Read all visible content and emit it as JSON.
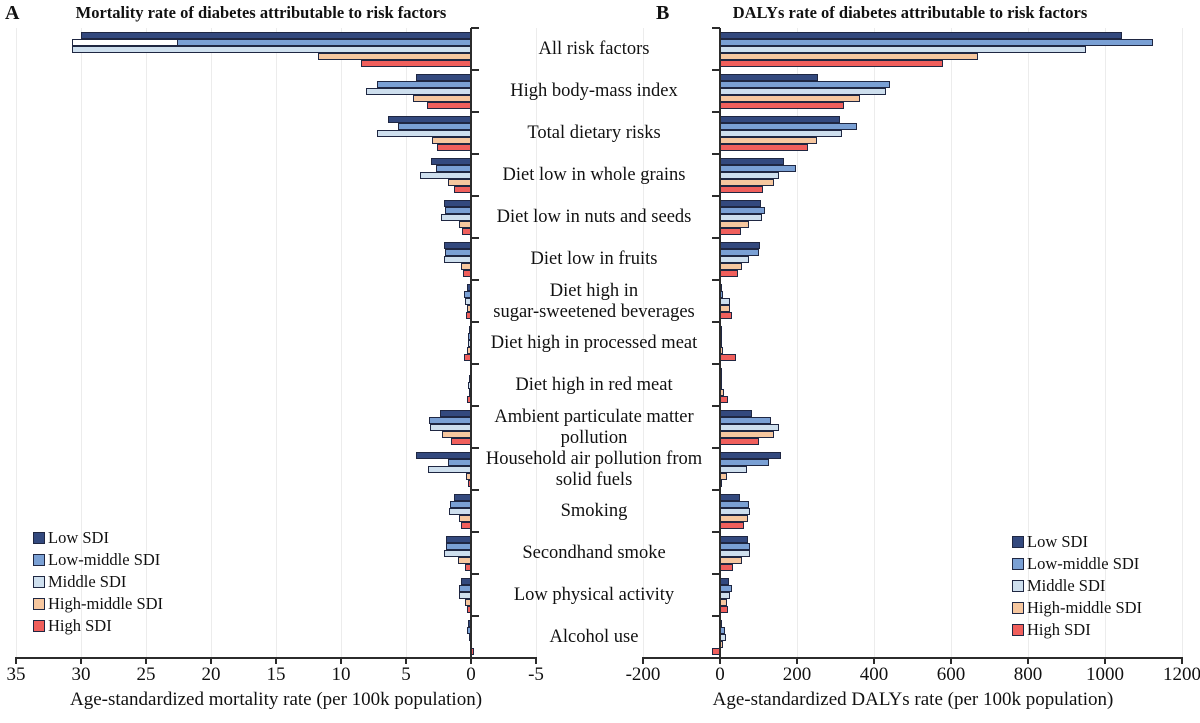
{
  "chart_data": {
    "type": "bar",
    "orientation": "horizontal",
    "grid": "vertical-light",
    "categories": [
      "All risk factors",
      "High body-mass index",
      "Total dietary risks",
      "Diet low in whole grains",
      "Diet low in nuts and seeds",
      "Diet low in fruits",
      "Diet high in\nsugar-sweetened beverages",
      "Diet high in processed meat",
      "Diet high in red meat",
      "Ambient particulate matter\npollution",
      "Household air pollution from\nsolid fuels",
      "Smoking",
      "Secondhand smoke",
      "Low physical activity",
      "Alcohol use"
    ],
    "series": [
      {
        "name": "Low SDI",
        "color": "#33497E",
        "mortality": [
          30.0,
          4.2,
          6.4,
          3.1,
          2.1,
          2.1,
          0.3,
          0.15,
          0.1,
          2.4,
          4.2,
          1.3,
          1.9,
          0.8,
          0.2
        ],
        "dalys": [
          1045,
          255,
          312,
          166,
          106,
          104,
          4,
          2,
          2,
          84,
          158,
          52,
          73,
          23,
          2
        ]
      },
      {
        "name": "Low-middle SDI",
        "color": "#7AA0D4",
        "mortality": [
          30.7,
          7.2,
          5.6,
          2.7,
          2.0,
          2.0,
          0.55,
          0.2,
          0.15,
          3.25,
          1.75,
          1.6,
          1.9,
          0.9,
          0.3
        ],
        "dalys": [
          1125,
          442,
          356,
          197,
          116,
          101,
          8,
          4,
          4,
          132,
          127,
          76,
          79,
          30,
          13
        ]
      },
      {
        "name": "Middle SDI",
        "color": "#CEDFEE",
        "mortality": [
          30.7,
          8.1,
          7.2,
          3.9,
          2.3,
          2.1,
          0.45,
          0.25,
          0.2,
          3.15,
          3.3,
          1.7,
          2.1,
          0.9,
          0.15
        ],
        "dalys": [
          950,
          431,
          317,
          153,
          109,
          75,
          27,
          6,
          6,
          154,
          71,
          78,
          78,
          26,
          16
        ]
      },
      {
        "name": "High-middle SDI",
        "color": "#F6C79F",
        "mortality": [
          11.8,
          4.5,
          3.0,
          1.8,
          0.95,
          0.75,
          0.3,
          0.3,
          0.15,
          2.25,
          0.4,
          0.9,
          1.0,
          0.45,
          0.05
        ],
        "dalys": [
          670,
          364,
          252,
          140,
          75,
          57,
          26,
          9,
          10,
          141,
          19,
          74,
          58,
          17,
          9
        ]
      },
      {
        "name": "High SDI",
        "color": "#F05F5C",
        "mortality": [
          8.5,
          3.4,
          2.6,
          1.3,
          0.7,
          0.6,
          0.4,
          0.55,
          0.3,
          1.55,
          0.2,
          0.75,
          0.5,
          0.3,
          -0.2
        ],
        "dalys": [
          580,
          322,
          229,
          111,
          54,
          46,
          31,
          41,
          20,
          101,
          3,
          62,
          33,
          20,
          -20
        ]
      }
    ],
    "panelA": {
      "letter": "A",
      "title": "Mortality rate of diabetes attributable to risk factors",
      "xlabel": "Age-standardized mortality rate (per 100k population)",
      "value_key": "mortality",
      "ticks": [
        35,
        30,
        25,
        20,
        15,
        10,
        5,
        0,
        -5
      ],
      "axis_direction": "reversed",
      "fill_break": {
        "category_index": 0,
        "series_index": 1,
        "outer_value": 30.7,
        "inner_value": 22.6,
        "break_fill": "#ffffff"
      }
    },
    "panelB": {
      "letter": "B",
      "title": "DALYs rate of diabetes attributable to risk factors",
      "xlabel": "Age-standardized DALYs rate (per 100k population)",
      "value_key": "dalys",
      "ticks": [
        -200,
        0,
        200,
        400,
        600,
        800,
        1000,
        1200
      ],
      "axis_direction": "normal"
    },
    "legend_position": "panelA: bottom-left, panelB: bottom-right"
  }
}
